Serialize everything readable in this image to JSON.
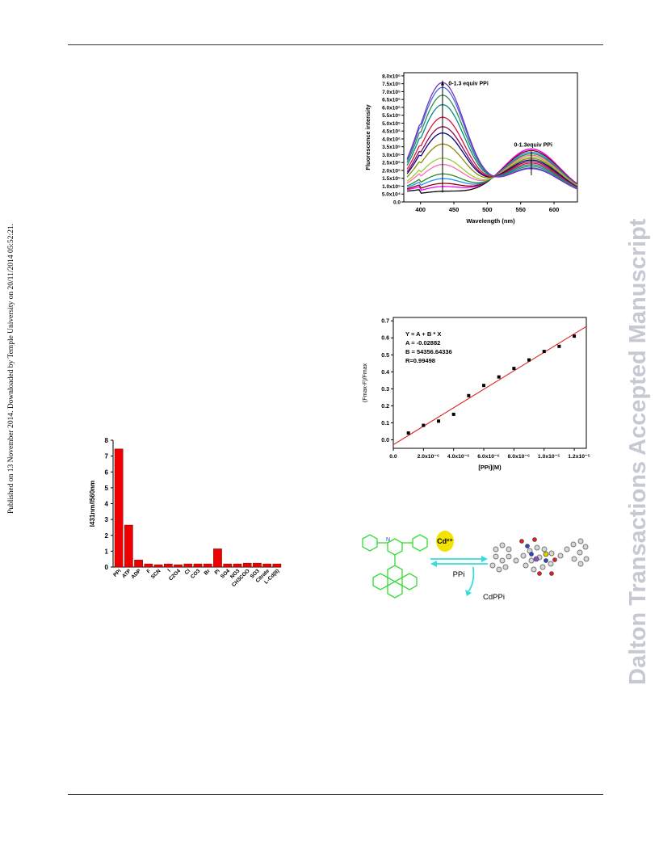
{
  "sidebar": {
    "published": "Published on 13 November 2014. Downloaded by Temple University on 20/11/2014 05:52:21.",
    "watermark": "Dalton Transactions Accepted Manuscript"
  },
  "figures": {
    "scheme": {
      "cation_label": "Cd²⁺",
      "anion_label": "PPi",
      "product_label": "CdPPi"
    }
  },
  "chart_data": [
    {
      "type": "line",
      "ylabel": "Fluorescence intensity",
      "xlabel": "Wavelength (nm)",
      "xlim": [
        375,
        635
      ],
      "ylim": [
        0,
        820000
      ],
      "x_ticks": [
        "400",
        "450",
        "500",
        "550",
        "600"
      ],
      "y_ticks": [
        "8.0x10⁵",
        "7.5x10⁵",
        "7.0x10⁵",
        "6.5x10⁵",
        "6.0x10⁵",
        "5.5x10⁵",
        "5.0x10⁵",
        "4.5x10⁵",
        "4.0x10⁵",
        "3.5x10⁵",
        "3.0x10⁵",
        "2.5x10⁵",
        "2.0x10⁵",
        "1.5x10⁵",
        "1.0x10⁵",
        "5.0x10⁴",
        "0.0"
      ],
      "y_tick_values": [
        800000,
        750000,
        700000,
        650000,
        600000,
        550000,
        500000,
        450000,
        400000,
        350000,
        300000,
        250000,
        200000,
        150000,
        100000,
        50000,
        0
      ],
      "annotations": [
        "0-1.3 equiv PPi",
        "0-1.3equiv PPi"
      ],
      "model": {
        "peak1_center": 433,
        "peak1_width": 34,
        "peak2_center": 566,
        "peak2_width": 42,
        "baseline": 60000
      },
      "series": [
        {
          "color": "#000000",
          "peak1": 30000,
          "peak2": 300000
        },
        {
          "color": "#ff00ff",
          "peak1": 60000,
          "peak2": 300000
        },
        {
          "color": "#8b0000",
          "peak1": 80000,
          "peak2": 290000
        },
        {
          "color": "#1e90ff",
          "peak1": 110000,
          "peak2": 280000
        },
        {
          "color": "#228b22",
          "peak1": 140000,
          "peak2": 270000
        },
        {
          "color": "#ff69b4",
          "peak1": 200000,
          "peak2": 260000
        },
        {
          "color": "#9acd32",
          "peak1": 240000,
          "peak2": 250000
        },
        {
          "color": "#8b8b00",
          "peak1": 330000,
          "peak2": 240000
        },
        {
          "color": "#00008b",
          "peak1": 400000,
          "peak2": 230000
        },
        {
          "color": "#8b0a50",
          "peak1": 440000,
          "peak2": 220000
        },
        {
          "color": "#dc143c",
          "peak1": 500000,
          "peak2": 210000
        },
        {
          "color": "#008b8b",
          "peak1": 580000,
          "peak2": 200000
        },
        {
          "color": "#2e8b57",
          "peak1": 640000,
          "peak2": 190000
        },
        {
          "color": "#4169e1",
          "peak1": 690000,
          "peak2": 180000
        },
        {
          "color": "#7b2fbe",
          "peak1": 720000,
          "peak2": 175000
        }
      ]
    },
    {
      "type": "scatter",
      "ylabel": "(Fmax-F)/Fmax",
      "xlabel": "[PPi](M)",
      "xlim": [
        0,
        1.28e-05
      ],
      "ylim": [
        -0.05,
        0.72
      ],
      "x_ticks": [
        "0.0",
        "2.0x10⁻⁶",
        "4.0x10⁻⁶",
        "6.0x10⁻⁶",
        "8.0x10⁻⁶",
        "1.0x10⁻⁵",
        "1.2x10⁻⁵"
      ],
      "x_tick_values": [
        0,
        2e-06,
        4e-06,
        6e-06,
        8e-06,
        1e-05,
        1.2e-05
      ],
      "y_ticks": [
        "0.7",
        "0.6",
        "0.5",
        "0.4",
        "0.3",
        "0.2",
        "0.1",
        "0.0"
      ],
      "y_tick_values": [
        0.7,
        0.6,
        0.5,
        0.4,
        0.3,
        0.2,
        0.1,
        0.0
      ],
      "fit_text": [
        "Y = A + B * X",
        "A = -0.02882",
        "B = 54356.64336",
        "R=0.99498"
      ],
      "fit": {
        "A": -0.02882,
        "B": 54356.64336
      },
      "x": [
        1e-06,
        2e-06,
        3e-06,
        4e-06,
        5e-06,
        6e-06,
        7e-06,
        8e-06,
        9e-06,
        1e-05,
        1.1e-05,
        1.2e-05
      ],
      "y": [
        0.04,
        0.085,
        0.11,
        0.15,
        0.26,
        0.32,
        0.37,
        0.42,
        0.47,
        0.52,
        0.55,
        0.61
      ]
    },
    {
      "type": "bar",
      "ylabel": "I431nm/I560nm",
      "ylim": [
        0,
        8
      ],
      "y_ticks": [
        "8",
        "7",
        "6",
        "5",
        "4",
        "3",
        "2",
        "1",
        "0"
      ],
      "y_tick_values": [
        8,
        7,
        6,
        5,
        4,
        3,
        2,
        1,
        0
      ],
      "categories": [
        "PPi",
        "ATP",
        "ADP",
        "F",
        "SCN",
        "I",
        "C2O4",
        "Cl",
        "CO3",
        "Br",
        "Pi",
        "SO4",
        "NO3",
        "CH3COO",
        "SO3",
        "Citrate",
        "L-Cd(II)"
      ],
      "values": [
        7.45,
        2.65,
        0.45,
        0.2,
        0.15,
        0.2,
        0.15,
        0.2,
        0.2,
        0.2,
        1.15,
        0.2,
        0.2,
        0.25,
        0.25,
        0.2,
        0.2
      ],
      "color": "#ee0000"
    }
  ]
}
